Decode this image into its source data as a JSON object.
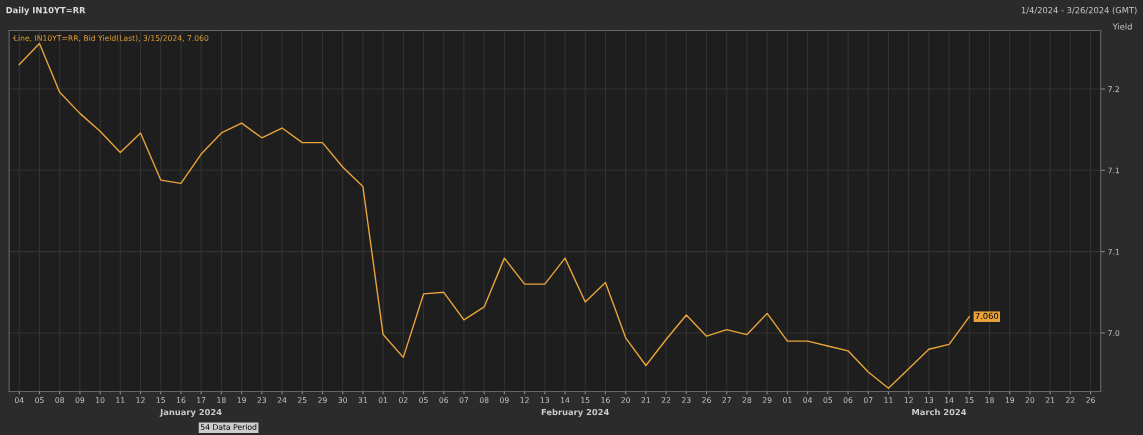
{
  "chart_data": {
    "type": "line",
    "title": "Daily IN10YT=RR",
    "subtitle": "1/4/2024 - 3/26/2024 (GMT)",
    "ylabel": "Yield",
    "categories": [
      "04",
      "05",
      "08",
      "09",
      "10",
      "11",
      "12",
      "15",
      "16",
      "17",
      "18",
      "19",
      "23",
      "24",
      "25",
      "29",
      "30",
      "31",
      "01",
      "02",
      "05",
      "06",
      "07",
      "08",
      "09",
      "12",
      "13",
      "14",
      "15",
      "16",
      "20",
      "21",
      "22",
      "23",
      "26",
      "27",
      "28",
      "29",
      "01",
      "04",
      "05",
      "06",
      "07",
      "11",
      "12",
      "13",
      "14",
      "15",
      "18",
      "19",
      "20",
      "21",
      "22",
      "26"
    ],
    "series": [
      {
        "name": "Line, IN10YT=RR, Bid Yield(Last), 3/15/2024, 7.060",
        "color": "#e8a33a",
        "values": [
          7.215,
          7.228,
          7.198,
          7.185,
          7.174,
          7.161,
          7.173,
          7.144,
          7.142,
          7.16,
          7.173,
          7.179,
          7.17,
          7.176,
          7.167,
          7.167,
          7.152,
          7.14,
          7.049,
          7.035,
          7.074,
          7.075,
          7.058,
          7.066,
          7.096,
          7.08,
          7.08,
          7.096,
          7.069,
          7.081,
          7.047,
          7.03,
          7.046,
          7.061,
          7.048,
          7.052,
          7.049,
          7.062,
          7.045,
          7.045,
          7.042,
          7.039,
          7.026,
          7.016,
          7.028,
          7.04,
          7.043,
          7.06,
          null,
          null,
          null,
          null,
          null,
          null
        ],
        "value_labels": [
          null,
          null,
          null,
          null,
          null,
          null,
          null,
          null,
          null,
          null,
          null,
          null,
          null,
          null,
          null,
          null,
          null,
          null,
          null,
          null,
          null,
          null,
          null,
          null,
          null,
          null,
          null,
          null,
          null,
          null,
          null,
          null,
          null,
          null,
          null,
          null,
          null,
          null,
          null,
          null,
          null,
          null,
          null,
          null,
          null,
          null,
          null,
          "7.060",
          null,
          null,
          null,
          null,
          null,
          null
        ]
      }
    ],
    "ylim": [
      7.014,
      7.236
    ],
    "yticks": [
      {
        "value": 7.2,
        "label": "7.2"
      },
      {
        "value": 7.15,
        "label": "7.1"
      },
      {
        "value": 7.1,
        "label": "7.1"
      },
      {
        "value": 7.05,
        "label": "7.0"
      }
    ],
    "annotations": [
      "January 2024",
      "February 2024",
      "March 2024",
      "54 Data Period"
    ],
    "grid": true,
    "legend": "top left",
    "marker": "none",
    "line_style": "solid"
  }
}
